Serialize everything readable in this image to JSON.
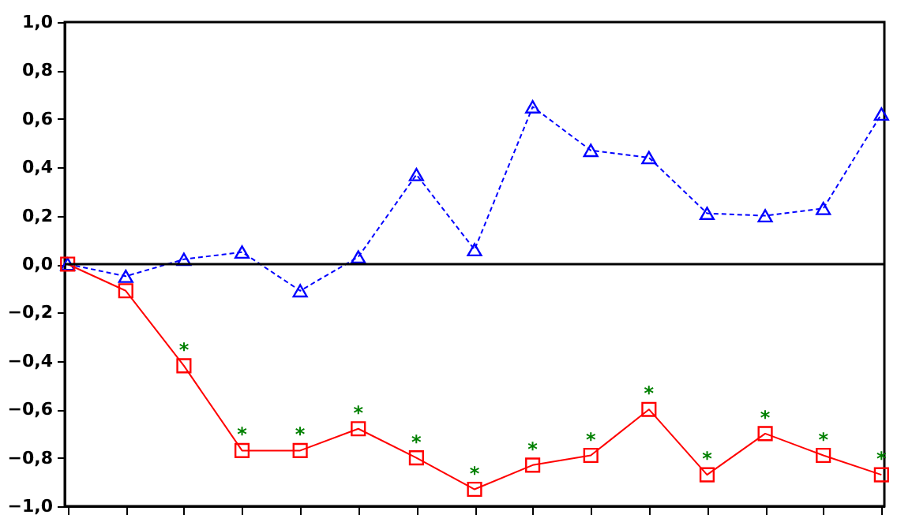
{
  "chart_data": {
    "type": "line",
    "categories": [
      null,
      null,
      null,
      null,
      null,
      null,
      null,
      null,
      null,
      null,
      null,
      null,
      null,
      null,
      null
    ],
    "series": [
      {
        "color": "#0000ff",
        "marker": "triangle",
        "line_style": "dashed",
        "values": [
          0,
          -0.05,
          0.02,
          0.05,
          -0.11,
          0.03,
          0.37,
          0.06,
          0.65,
          0.47,
          0.44,
          0.21,
          0.2,
          0.23,
          0.62
        ]
      },
      {
        "color": "#ff0000",
        "marker": "square",
        "line_style": "solid",
        "values": [
          0,
          -0.11,
          -0.42,
          -0.77,
          -0.77,
          -0.68,
          -0.8,
          -0.93,
          -0.83,
          -0.79,
          -0.6,
          -0.87,
          -0.7,
          -0.79,
          -0.87
        ],
        "value_labels": [
          null,
          null,
          "*",
          "*",
          "*",
          "*",
          "*",
          "*",
          "*",
          "*",
          "*",
          "*",
          "*",
          "*",
          "*"
        ]
      }
    ],
    "ylim": [
      -1.0,
      1.0
    ],
    "yticks": [
      {
        "value": -1.0,
        "label": "−1,0"
      },
      {
        "value": -0.8,
        "label": "−0,8"
      },
      {
        "value": -0.6,
        "label": "−0,6"
      },
      {
        "value": -0.4,
        "label": "−0,4"
      },
      {
        "value": -0.2,
        "label": "−0,2"
      },
      {
        "value": 0.0,
        "label": "0,0"
      },
      {
        "value": 0.2,
        "label": "0,2"
      },
      {
        "value": 0.4,
        "label": "0,4"
      },
      {
        "value": 0.6,
        "label": "0,6"
      },
      {
        "value": 0.8,
        "label": "0,8"
      },
      {
        "value": 1.0,
        "label": "1,0"
      }
    ],
    "ref_lines": [
      {
        "axis": "y",
        "value": 0,
        "color": "#000000",
        "line_style": "solid"
      }
    ],
    "tick_labels": "y",
    "grid": false
  }
}
